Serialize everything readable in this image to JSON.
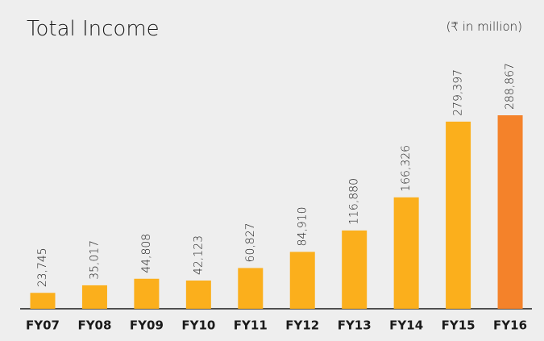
{
  "chart_data": {
    "type": "bar",
    "title": "Total Income",
    "subtitle": "(₹ in million)",
    "categories": [
      "FY07",
      "FY08",
      "FY09",
      "FY10",
      "FY11",
      "FY12",
      "FY13",
      "FY14",
      "FY15",
      "FY16"
    ],
    "values": [
      23745,
      35017,
      44808,
      42123,
      60827,
      84910,
      116880,
      166326,
      279397,
      288867
    ],
    "value_labels": [
      "23,745",
      "35,017",
      "44,808",
      "42,123",
      "60,827",
      "84,910",
      "116,880",
      "166,326",
      "279,397",
      "288,867"
    ],
    "colors": [
      "#fbaf1c",
      "#fbaf1c",
      "#fbaf1c",
      "#fbaf1c",
      "#fbaf1c",
      "#fbaf1c",
      "#fbaf1c",
      "#fbaf1c",
      "#fbaf1c",
      "#f4822a"
    ]
  }
}
